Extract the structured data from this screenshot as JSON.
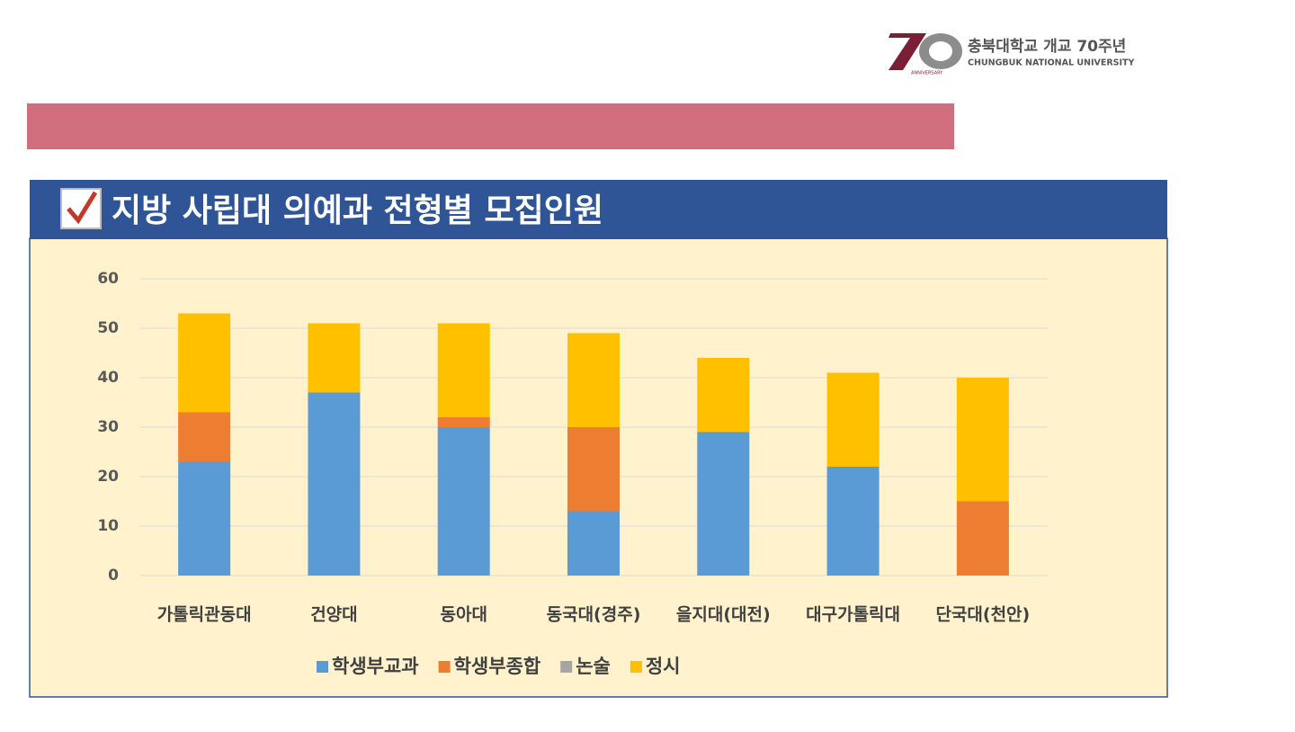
{
  "logo": {
    "mark": "70",
    "tagline": "ANNIVERSARY",
    "name": "충북대학교 개교 70주년",
    "english": "CHUNGBUK NATIONAL UNIVERSITY"
  },
  "chart_data": {
    "type": "stacked_bar",
    "title": "지방 사립대 의예과 전형별 모집인원",
    "categories": [
      "가톨릭관동대",
      "건양대",
      "동아대",
      "동국대(경주)",
      "을지대(대전)",
      "대구가톨릭대",
      "단국대(천안)"
    ],
    "series": [
      {
        "name": "학생부교과",
        "color": "#5b9bd5",
        "values": [
          23,
          37,
          30,
          13,
          29,
          22,
          0
        ]
      },
      {
        "name": "학생부종합",
        "color": "#ed7d31",
        "values": [
          10,
          0,
          2,
          17,
          0,
          0,
          15
        ]
      },
      {
        "name": "논술",
        "color": "#a5a5a5",
        "values": [
          0,
          0,
          0,
          0,
          0,
          0,
          0
        ]
      },
      {
        "name": "정시",
        "color": "#ffc000",
        "values": [
          20,
          14,
          19,
          19,
          15,
          19,
          25
        ]
      }
    ],
    "ylim": [
      0,
      60
    ],
    "yticks": [
      0,
      10,
      20,
      30,
      40,
      50,
      60
    ],
    "grid": true,
    "legend": "bottom"
  }
}
